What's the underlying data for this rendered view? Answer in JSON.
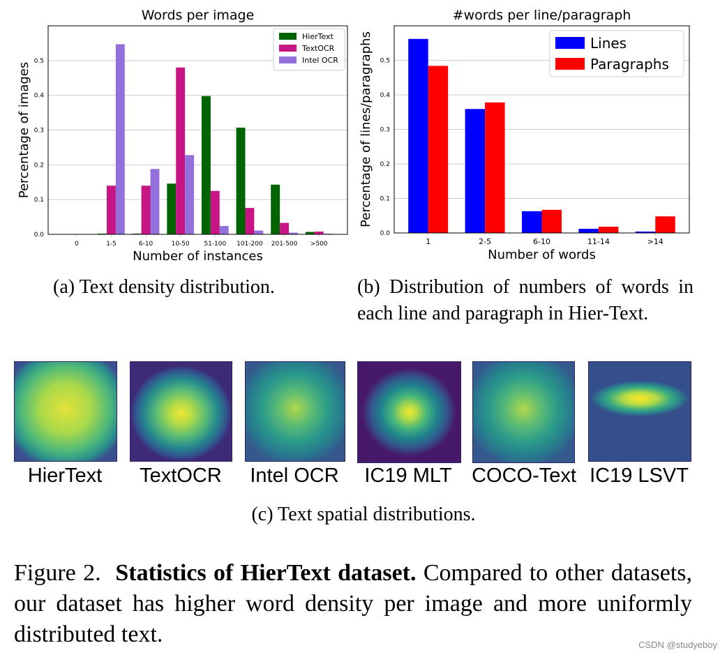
{
  "chart_data": [
    {
      "type": "bar",
      "title": "Words per image",
      "xlabel": "Number of instances",
      "ylabel": "Percentage of images",
      "categories": [
        "0",
        "1-5",
        "6-10",
        "10-50",
        "51-100",
        "101-200",
        "201-500",
        ">500"
      ],
      "series": [
        {
          "name": "HierText",
          "color": "#006400",
          "values": [
            0.0,
            0.002,
            0.002,
            0.146,
            0.398,
            0.307,
            0.143,
            0.007
          ]
        },
        {
          "name": "TextOCR",
          "color": "#c71585",
          "values": [
            0.0,
            0.14,
            0.14,
            0.48,
            0.125,
            0.076,
            0.033,
            0.008
          ]
        },
        {
          "name": "Intel OCR",
          "color": "#9370db",
          "values": [
            0.0,
            0.547,
            0.188,
            0.228,
            0.024,
            0.011,
            0.005,
            0.002
          ]
        }
      ],
      "ylim": [
        0,
        0.6
      ],
      "yticks": [
        "0.0",
        "0.1",
        "0.2",
        "0.3",
        "0.4",
        "0.5"
      ],
      "grid": true,
      "legend": "top-right"
    },
    {
      "type": "bar",
      "title": "#words per line/paragraph",
      "xlabel": "Number of words",
      "ylabel": "Percentage of lines/paragraphs",
      "categories": [
        "1",
        "2-5",
        "6-10",
        "11-14",
        ">14"
      ],
      "series": [
        {
          "name": "Lines",
          "color": "#0000ff",
          "values": [
            0.562,
            0.359,
            0.063,
            0.012,
            0.004
          ]
        },
        {
          "name": "Paragraphs",
          "color": "#ff0000",
          "values": [
            0.484,
            0.378,
            0.067,
            0.018,
            0.048
          ]
        }
      ],
      "ylim": [
        0,
        0.6
      ],
      "yticks": [
        "0.0",
        "0.1",
        "0.2",
        "0.3",
        "0.4",
        "0.5"
      ],
      "grid": true,
      "legend": "top-right"
    }
  ],
  "captions": {
    "a": "(a) Text density distribution.",
    "b": "(b) Distribution of numbers of words in each line and paragraph in Hier-Text.",
    "c": "(c) Text spatial distributions."
  },
  "heatmaps": [
    {
      "label": "HierText",
      "pattern": "uniform"
    },
    {
      "label": "TextOCR",
      "pattern": "center"
    },
    {
      "label": "Intel OCR",
      "pattern": "center-noisy"
    },
    {
      "label": "IC19 MLT",
      "pattern": "center-tight"
    },
    {
      "label": "COCO-Text",
      "pattern": "center-noisy"
    },
    {
      "label": "IC19 LSVT",
      "pattern": "horizontal-band"
    }
  ],
  "figure_caption": {
    "prefix": "Figure 2.",
    "bold": "Statistics of HierText dataset.",
    "rest": "Compared to other datasets, our dataset has higher word density per image and more uniformly distributed text."
  },
  "watermark": "CSDN @studyeboy"
}
